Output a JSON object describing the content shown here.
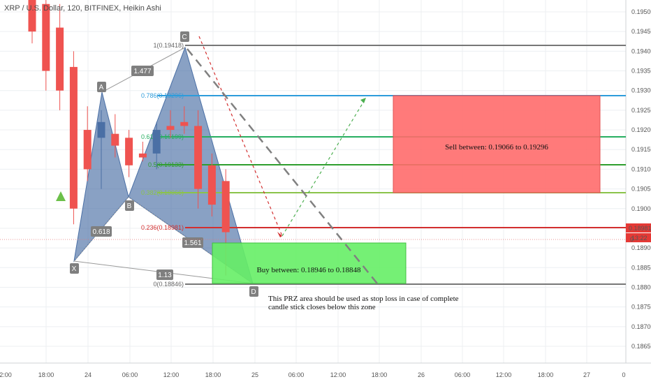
{
  "header": {
    "title": "XRP / U.S. Dollar, 120, BITFINEX, Heikin Ashi"
  },
  "price_axis": {
    "ticks": [
      "0.19500",
      "0.19450",
      "0.19400",
      "0.19350",
      "0.19300",
      "0.19250",
      "0.19200",
      "0.19150",
      "0.19100",
      "0.19050",
      "0.19000",
      "0.18950",
      "0.18900",
      "0.18850",
      "0.18800",
      "0.18750",
      "0.18700",
      "0.18650"
    ],
    "last_price": "0.18981",
    "countdown": "13:22",
    "partial_tick": "0"
  },
  "time_axis": {
    "ticks": [
      "2:00",
      "18:00",
      "24",
      "06:00",
      "12:00",
      "18:00",
      "25",
      "06:00",
      "12:00",
      "18:00",
      "26",
      "06:00",
      "12:00",
      "18:00",
      "27",
      "0"
    ]
  },
  "colors": {
    "bull": "#ef5350",
    "bear": "#4a6fa5",
    "pattern_fill": "#4a6fa5",
    "buy_box": "#66ee66",
    "sell_box": "#ff6b6b",
    "last_price": "#e53935"
  },
  "pattern": {
    "points": [
      {
        "label": "X",
        "price": 0.189,
        "time": "24 00:00"
      },
      {
        "label": "A",
        "price": 0.193,
        "time": "24 04:00"
      },
      {
        "label": "B",
        "price": 0.19048,
        "time": "24 06:00"
      },
      {
        "label": "C",
        "price": 0.19418,
        "time": "24 14:00"
      },
      {
        "label": "D",
        "price": 0.18848,
        "time": "24 22:00"
      }
    ],
    "ratios": [
      "1.477",
      "0.618",
      "1.561",
      "1.13"
    ]
  },
  "fib_levels": [
    {
      "label": "1(0.19418)",
      "price": 0.19418,
      "color": "#777777"
    },
    {
      "label": "0.786(0.19296)",
      "price": 0.19296,
      "color": "#2d9cdb"
    },
    {
      "label": "0.618(0.19199)",
      "price": 0.19199,
      "color": "#27ae60"
    },
    {
      "label": "0.5(0.19133)",
      "price": 0.19133,
      "color": "#2e9e2e"
    },
    {
      "label": "0.382(0.19066)",
      "price": 0.19066,
      "color": "#8bc34a"
    },
    {
      "label": "0.236(0.18981)",
      "price": 0.18981,
      "color": "#d32f2f"
    },
    {
      "label": "0(0.18846)",
      "price": 0.18846,
      "color": "#777777"
    }
  ],
  "annotations": {
    "buy": "Buy between: 0.18946 to 0.18848",
    "sell": "Sell between: 0.19066 to 0.19296",
    "note_line1": "This PRZ area should be used as stop loss in case of complete",
    "note_line2": "candle stick closes below this zone"
  },
  "chart_data": {
    "type": "candlestick",
    "title": "XRP / U.S. Dollar, 120, BITFINEX, Heikin Ashi",
    "ylim": [
      0.1864,
      0.1953
    ],
    "candles": [
      {
        "o": 0.1956,
        "h": 0.1958,
        "l": 0.1942,
        "c": 0.1945,
        "dir": "down"
      },
      {
        "o": 0.1952,
        "h": 0.1956,
        "l": 0.193,
        "c": 0.1935,
        "dir": "down"
      },
      {
        "o": 0.1946,
        "h": 0.1952,
        "l": 0.1925,
        "c": 0.193,
        "dir": "down"
      },
      {
        "o": 0.1936,
        "h": 0.194,
        "l": 0.1896,
        "c": 0.19,
        "dir": "down"
      },
      {
        "o": 0.192,
        "h": 0.1926,
        "l": 0.1907,
        "c": 0.191,
        "dir": "down"
      },
      {
        "o": 0.1918,
        "h": 0.1925,
        "l": 0.1905,
        "c": 0.1922,
        "dir": "up"
      },
      {
        "o": 0.1919,
        "h": 0.1924,
        "l": 0.1913,
        "c": 0.1916,
        "dir": "down"
      },
      {
        "o": 0.1918,
        "h": 0.192,
        "l": 0.1908,
        "c": 0.1911,
        "dir": "down"
      },
      {
        "o": 0.1914,
        "h": 0.1917,
        "l": 0.1912,
        "c": 0.1913,
        "dir": "down"
      },
      {
        "o": 0.1914,
        "h": 0.1922,
        "l": 0.191,
        "c": 0.192,
        "dir": "up"
      },
      {
        "o": 0.1921,
        "h": 0.1925,
        "l": 0.1918,
        "c": 0.192,
        "dir": "down"
      },
      {
        "o": 0.1922,
        "h": 0.1926,
        "l": 0.1919,
        "c": 0.1921,
        "dir": "down"
      },
      {
        "o": 0.1921,
        "h": 0.1925,
        "l": 0.19,
        "c": 0.1905,
        "dir": "down"
      },
      {
        "o": 0.1911,
        "h": 0.1914,
        "l": 0.1898,
        "c": 0.1901,
        "dir": "down"
      },
      {
        "o": 0.1907,
        "h": 0.191,
        "l": 0.1883,
        "c": 0.1894,
        "dir": "down"
      }
    ]
  }
}
